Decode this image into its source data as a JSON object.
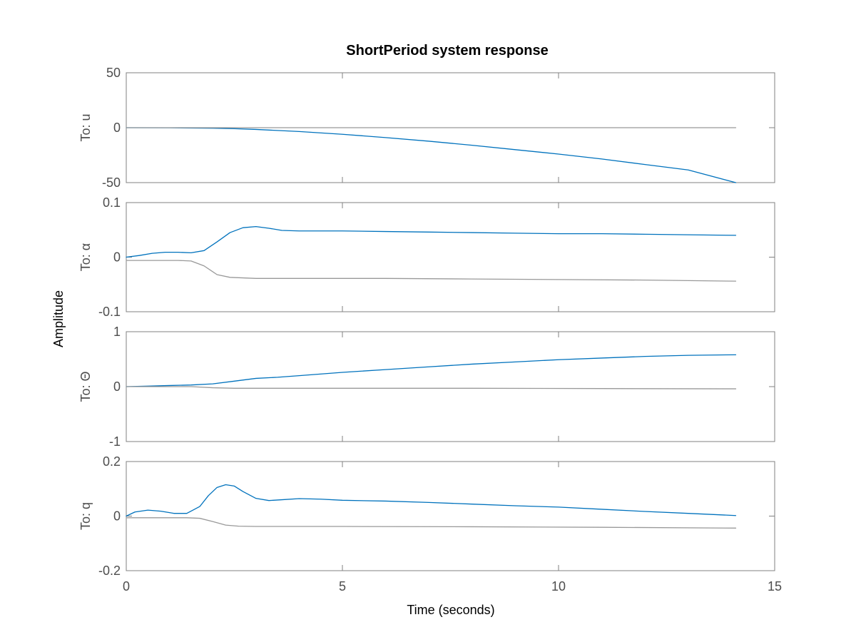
{
  "chart_data": {
    "type": "line",
    "title": "ShortPeriod system response",
    "xlabel": "Time (seconds)",
    "ylabel": "Amplitude",
    "xlim": [
      0,
      15
    ],
    "xticks": [
      0,
      5,
      10,
      15
    ],
    "grid": false,
    "colors": {
      "response": "#0072bd",
      "reference": "#999999",
      "axes": "#808080"
    },
    "subplots": [
      {
        "row_label": "To: u",
        "ylim": [
          -50,
          50
        ],
        "yticks": [
          50,
          0,
          -50
        ],
        "series": [
          {
            "role": "response",
            "x": [
              0,
              1,
              2,
              2.5,
              3,
              4,
              5,
              6,
              7,
              8,
              9,
              10,
              11,
              12,
              13,
              14.1
            ],
            "y": [
              0,
              -0.1,
              -0.5,
              -0.9,
              -1.6,
              -3.5,
              -6,
              -9,
              -12.3,
              -16,
              -20,
              -24,
              -28.5,
              -33.5,
              -38.5,
              -50
            ]
          },
          {
            "role": "reference",
            "x": [
              0,
              14.1
            ],
            "y": [
              0,
              0
            ]
          }
        ]
      },
      {
        "row_label": "To: α",
        "ylim": [
          -0.1,
          0.1
        ],
        "yticks": [
          0.1,
          0,
          -0.1
        ],
        "series": [
          {
            "role": "response",
            "x": [
              0,
              0.3,
              0.6,
              0.9,
              1.2,
              1.5,
              1.8,
              2.1,
              2.4,
              2.7,
              3.0,
              3.3,
              3.6,
              4.0,
              4.5,
              5,
              6,
              7,
              8,
              9,
              10,
              11,
              12,
              13,
              14.1
            ],
            "y": [
              0,
              0.003,
              0.007,
              0.009,
              0.009,
              0.008,
              0.012,
              0.028,
              0.045,
              0.054,
              0.056,
              0.053,
              0.049,
              0.048,
              0.048,
              0.048,
              0.047,
              0.046,
              0.045,
              0.044,
              0.043,
              0.043,
              0.042,
              0.041,
              0.04
            ]
          },
          {
            "role": "reference",
            "x": [
              0,
              1.2,
              1.5,
              1.8,
              2.1,
              2.4,
              3,
              4,
              6,
              8,
              10,
              12,
              14.1
            ],
            "y": [
              -0.006,
              -0.006,
              -0.007,
              -0.016,
              -0.032,
              -0.037,
              -0.039,
              -0.039,
              -0.039,
              -0.04,
              -0.041,
              -0.042,
              -0.044
            ]
          }
        ]
      },
      {
        "row_label": "To: Θ",
        "ylim": [
          -1,
          1
        ],
        "yticks": [
          1,
          0,
          -1
        ],
        "series": [
          {
            "role": "response",
            "x": [
              0,
              0.5,
              1,
              1.5,
              2,
              2.5,
              3,
              3.5,
              4,
              5,
              6,
              7,
              8,
              9,
              10,
              11,
              12,
              13,
              14.1
            ],
            "y": [
              0,
              0.01,
              0.02,
              0.03,
              0.05,
              0.1,
              0.15,
              0.17,
              0.2,
              0.26,
              0.31,
              0.36,
              0.41,
              0.45,
              0.49,
              0.52,
              0.55,
              0.57,
              0.58
            ]
          },
          {
            "role": "reference",
            "x": [
              0,
              1.5,
              2,
              2.5,
              3,
              5,
              8,
              11,
              14.1
            ],
            "y": [
              0,
              0,
              -0.02,
              -0.03,
              -0.03,
              -0.03,
              -0.03,
              -0.035,
              -0.04
            ]
          }
        ]
      },
      {
        "row_label": "To: q",
        "ylim": [
          -0.2,
          0.2
        ],
        "yticks": [
          0.2,
          0,
          -0.2
        ],
        "series": [
          {
            "role": "response",
            "x": [
              0,
              0.2,
              0.5,
              0.8,
              1.1,
              1.4,
              1.7,
              1.9,
              2.1,
              2.3,
              2.5,
              2.7,
              3.0,
              3.3,
              3.6,
              4.0,
              4.5,
              5,
              6,
              7,
              8,
              9,
              10,
              11,
              12,
              13,
              14.1
            ],
            "y": [
              0,
              0.015,
              0.022,
              0.018,
              0.01,
              0.01,
              0.035,
              0.075,
              0.105,
              0.115,
              0.11,
              0.09,
              0.065,
              0.057,
              0.06,
              0.064,
              0.062,
              0.058,
              0.055,
              0.05,
              0.044,
              0.038,
              0.033,
              0.025,
              0.017,
              0.01,
              0.002
            ]
          },
          {
            "role": "reference",
            "x": [
              0,
              1.4,
              1.7,
              2.0,
              2.3,
              2.6,
              3,
              5,
              8,
              11,
              14.1
            ],
            "y": [
              -0.006,
              -0.006,
              -0.008,
              -0.02,
              -0.033,
              -0.037,
              -0.038,
              -0.038,
              -0.039,
              -0.041,
              -0.044
            ]
          }
        ]
      }
    ]
  }
}
